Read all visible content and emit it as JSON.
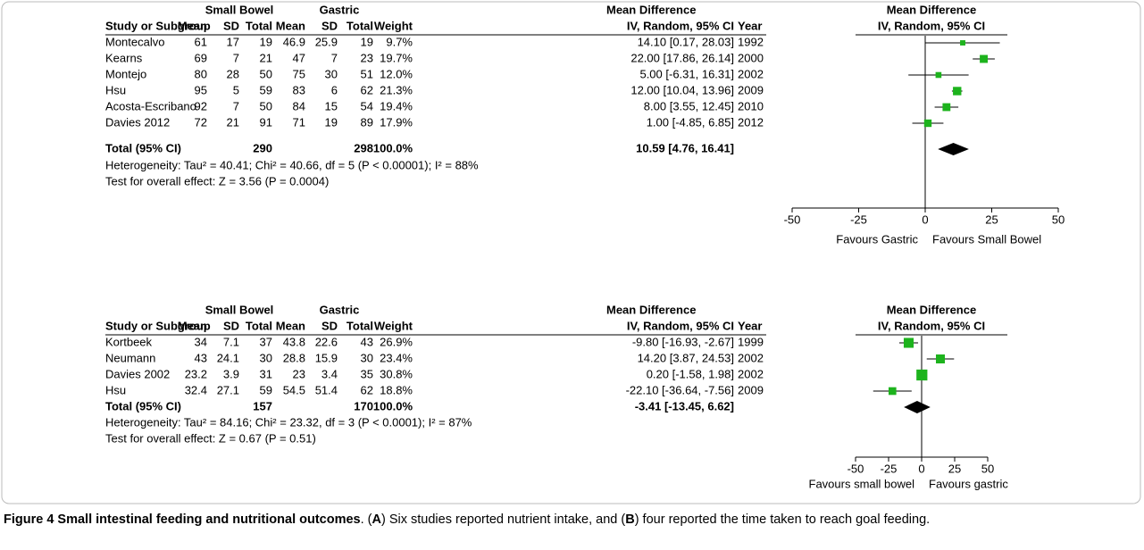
{
  "panels": [
    {
      "type": "forest",
      "group1": "Small Bowel",
      "group2": "Gastric",
      "md_header": "Mean Difference",
      "plot_header": "Mean Difference",
      "plot_subheader": "IV, Random, 95% CI",
      "columns": [
        "Study or Subgroup",
        "Mean",
        "SD",
        "Total",
        "Mean",
        "SD",
        "Total",
        "Weight",
        "IV, Random, 95% CI",
        "Year"
      ],
      "rows": [
        {
          "study": "Montecalvo",
          "sb_mean": 61,
          "sb_sd": 17,
          "sb_total": 19,
          "g_mean": 46.9,
          "g_sd": 25.9,
          "g_total": 19,
          "weight": {
            "value": 9.7,
            "label": "9.7%"
          },
          "ci": "14.10 [0.17, 28.03]",
          "md": 14.1,
          "lo": 0.17,
          "hi": 28.03,
          "year": 1992
        },
        {
          "study": "Kearns",
          "sb_mean": 69,
          "sb_sd": 7,
          "sb_total": 21,
          "g_mean": 47,
          "g_sd": 7,
          "g_total": 23,
          "weight": {
            "value": 19.7,
            "label": "19.7%"
          },
          "ci": "22.00 [17.86, 26.14]",
          "md": 22,
          "lo": 17.86,
          "hi": 26.14,
          "year": 2000
        },
        {
          "study": "Montejo",
          "sb_mean": 80,
          "sb_sd": 28,
          "sb_total": 50,
          "g_mean": 75,
          "g_sd": 30,
          "g_total": 51,
          "weight": {
            "value": 12.0,
            "label": "12.0%"
          },
          "ci": "5.00 [-6.31, 16.31]",
          "md": 5,
          "lo": -6.31,
          "hi": 16.31,
          "year": 2002
        },
        {
          "study": "Hsu",
          "sb_mean": 95,
          "sb_sd": 5,
          "sb_total": 59,
          "g_mean": 83,
          "g_sd": 6,
          "g_total": 62,
          "weight": {
            "value": 21.3,
            "label": "21.3%"
          },
          "ci": "12.00 [10.04, 13.96]",
          "md": 12,
          "lo": 10.04,
          "hi": 13.96,
          "year": 2009
        },
        {
          "study": "Acosta-Escribano",
          "sb_mean": 92,
          "sb_sd": 7,
          "sb_total": 50,
          "g_mean": 84,
          "g_sd": 15,
          "g_total": 54,
          "weight": {
            "value": 19.4,
            "label": "19.4%"
          },
          "ci": "8.00 [3.55, 12.45]",
          "md": 8,
          "lo": 3.55,
          "hi": 12.45,
          "year": 2010
        },
        {
          "study": "Davies 2012",
          "sb_mean": 72,
          "sb_sd": 21,
          "sb_total": 91,
          "g_mean": 71,
          "g_sd": 19,
          "g_total": 89,
          "weight": {
            "value": 17.9,
            "label": "17.9%"
          },
          "ci": "1.00 [-4.85, 6.85]",
          "md": 1,
          "lo": -4.85,
          "hi": 6.85,
          "year": 2012
        }
      ],
      "total": {
        "label": "Total (95% CI)",
        "sb_total": 290,
        "g_total": 298,
        "weight": "100.0%",
        "ci": "10.59 [4.76, 16.41]",
        "md": 10.59,
        "lo": 4.76,
        "hi": 16.41
      },
      "heterogeneity": "Heterogeneity: Tau² = 40.41; Chi² = 40.66, df = 5 (P < 0.00001); I² = 88%",
      "overall": "Test for overall effect: Z = 3.56 (P = 0.0004)",
      "xlim": [
        -50,
        50
      ],
      "xticks": [
        -50,
        -25,
        0,
        25,
        50
      ],
      "left_label": "Favours Gastric",
      "right_label": "Favours Small Bowel",
      "marker_color": "#1db31d"
    },
    {
      "type": "forest",
      "group1": "Small Bowel",
      "group2": "Gastric",
      "md_header": "Mean Difference",
      "plot_header": "Mean Difference",
      "plot_subheader": "IV, Random, 95% CI",
      "columns": [
        "Study or Subgroup",
        "Mean",
        "SD",
        "Total",
        "Mean",
        "SD",
        "Total",
        "Weight",
        "IV, Random, 95% CI",
        "Year"
      ],
      "rows": [
        {
          "study": "Kortbeek",
          "sb_mean": 34,
          "sb_sd": 7.1,
          "sb_total": 37,
          "g_mean": 43.8,
          "g_sd": 22.6,
          "g_total": 43,
          "weight": {
            "value": 26.9,
            "label": "26.9%"
          },
          "ci": "-9.80 [-16.93, -2.67]",
          "md": -9.8,
          "lo": -16.93,
          "hi": -2.67,
          "year": 1999
        },
        {
          "study": "Neumann",
          "sb_mean": 43,
          "sb_sd": 24.1,
          "sb_total": 30,
          "g_mean": 28.8,
          "g_sd": 15.9,
          "g_total": 30,
          "weight": {
            "value": 23.4,
            "label": "23.4%"
          },
          "ci": "14.20 [3.87, 24.53]",
          "md": 14.2,
          "lo": 3.87,
          "hi": 24.53,
          "year": 2002
        },
        {
          "study": "Davies 2002",
          "sb_mean": 23.2,
          "sb_sd": 3.9,
          "sb_total": 31,
          "g_mean": 23,
          "g_sd": 3.4,
          "g_total": 35,
          "weight": {
            "value": 30.8,
            "label": "30.8%"
          },
          "ci": "0.20 [-1.58, 1.98]",
          "md": 0.2,
          "lo": -1.58,
          "hi": 1.98,
          "year": 2002
        },
        {
          "study": "Hsu",
          "sb_mean": 32.4,
          "sb_sd": 27.1,
          "sb_total": 59,
          "g_mean": 54.5,
          "g_sd": 51.4,
          "g_total": 62,
          "weight": {
            "value": 18.8,
            "label": "18.8%"
          },
          "ci": "-22.10 [-36.64, -7.56]",
          "md": -22.1,
          "lo": -36.64,
          "hi": -7.56,
          "year": 2009
        }
      ],
      "total": {
        "label": "Total (95% CI)",
        "sb_total": 157,
        "g_total": 170,
        "weight": "100.0%",
        "ci": "-3.41 [-13.45, 6.62]",
        "md": -3.41,
        "lo": -13.45,
        "hi": 6.62
      },
      "heterogeneity": "Heterogeneity: Tau² = 84.16; Chi² = 23.32, df = 3 (P < 0.0001); I² = 87%",
      "overall": "Test for overall effect: Z = 0.67 (P = 0.51)",
      "xlim": [
        -50,
        50
      ],
      "xticks": [
        -50,
        -25,
        0,
        25,
        50
      ],
      "left_label": "Favours small bowel",
      "right_label": "Favours gastric",
      "marker_color": "#1db31d"
    }
  ],
  "caption": {
    "parts": [
      {
        "text": "Figure 4 Small intestinal feeding and nutritional outcomes",
        "bold": true
      },
      {
        "text": ". (",
        "bold": false
      },
      {
        "text": "A",
        "bold": true
      },
      {
        "text": ") Six studies reported nutrient intake, and (",
        "bold": false
      },
      {
        "text": "B",
        "bold": true
      },
      {
        "text": ") four reported the time taken to reach goal feeding.",
        "bold": false
      }
    ]
  }
}
